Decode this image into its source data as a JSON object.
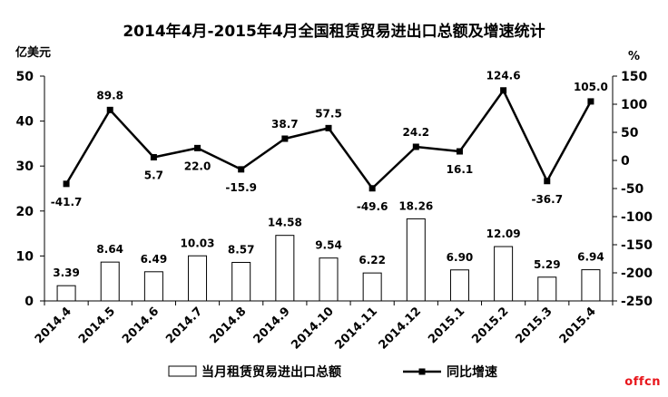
{
  "chart_data": {
    "type": "bar+line",
    "title": "2014年4月-2015年4月全国租赁贸易进出口总额及增速统计",
    "y_left_unit": "亿美元",
    "y_right_unit": "%",
    "categories": [
      "2014.4",
      "2014.5",
      "2014.6",
      "2014.7",
      "2014.8",
      "2014.9",
      "2014.10",
      "2014.11",
      "2014.12",
      "2015.1",
      "2015.2",
      "2015.3",
      "2015.4"
    ],
    "series": [
      {
        "name": "当月租赁贸易进出口总额",
        "type": "bar",
        "axis": "left",
        "values": [
          3.39,
          8.64,
          6.49,
          10.03,
          8.57,
          14.58,
          9.54,
          6.22,
          18.26,
          6.9,
          12.09,
          5.29,
          6.94
        ],
        "labels": [
          "3.39",
          "8.64",
          "6.49",
          "10.03",
          "8.57",
          "14.58",
          "9.54",
          "6.22",
          "18.26",
          "6.90",
          "12.09",
          "5.29",
          "6.94"
        ]
      },
      {
        "name": "同比增速",
        "type": "line",
        "axis": "right",
        "values": [
          -41.7,
          89.8,
          5.7,
          22.0,
          -15.9,
          38.7,
          57.5,
          -49.6,
          24.2,
          16.1,
          124.6,
          -36.7,
          105.0
        ],
        "labels": [
          "-41.7",
          "89.8",
          "5.7",
          "22.0",
          "-15.9",
          "38.7",
          "57.5",
          "-49.6",
          "24.2",
          "16.1",
          "124.6",
          "-36.7",
          "105.0"
        ]
      }
    ],
    "y_left_range": [
      0,
      50
    ],
    "y_left_ticks": [
      "0",
      "10",
      "20",
      "30",
      "40",
      "50"
    ],
    "y_right_range": [
      -250,
      150
    ],
    "y_right_ticks": [
      "-250",
      "-200",
      "-150",
      "-100",
      "-50",
      "0",
      "50",
      "100",
      "150"
    ],
    "grid": false,
    "legend_position": "bottom"
  },
  "watermark": "offcn"
}
